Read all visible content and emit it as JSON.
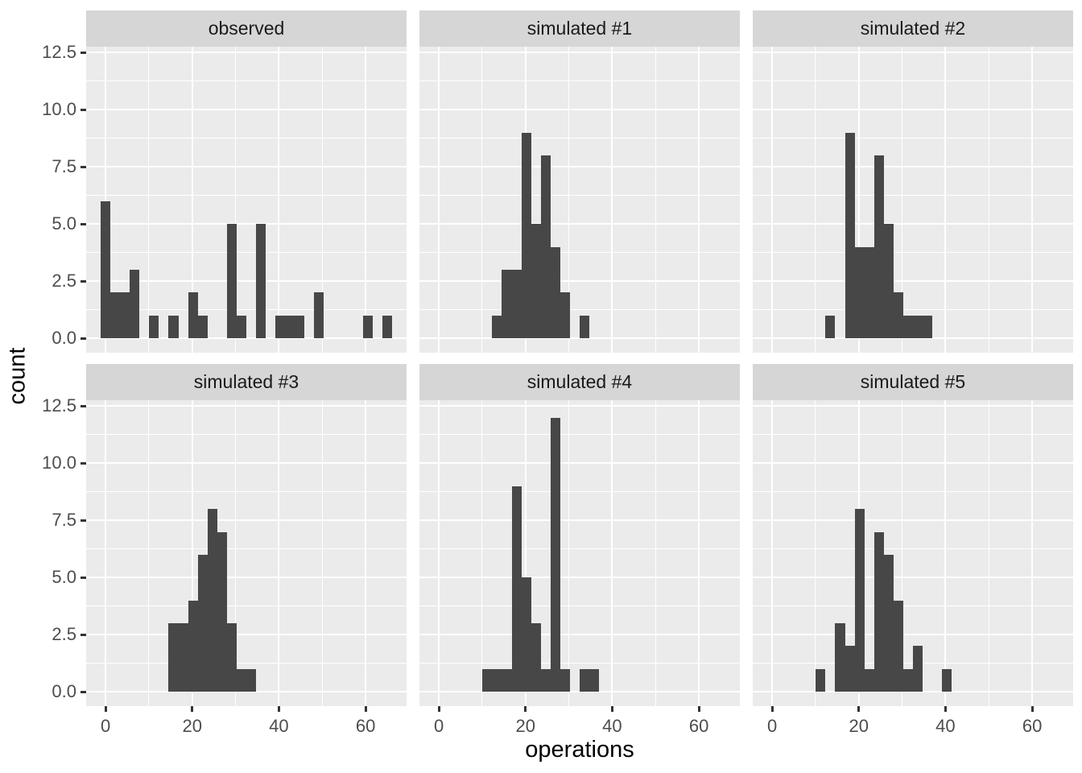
{
  "figure": {
    "x_axis_title": "operations",
    "y_axis_title": "count"
  },
  "chart_data": {
    "type": "bar",
    "subtype": "faceted-histogram",
    "title": "",
    "xlabel": "operations",
    "ylabel": "count",
    "facet_layout": {
      "rows": 2,
      "cols": 3
    },
    "binwidth": 2.24,
    "xlim": [
      -4.48,
      69.46
    ],
    "ylim": [
      -0.63,
      12.76
    ],
    "x_ticks": [
      0,
      20,
      40,
      60
    ],
    "x_tick_labels": [
      "0",
      "20",
      "40",
      "60"
    ],
    "y_ticks": [
      0,
      2.5,
      5,
      7.5,
      10,
      12.5
    ],
    "y_tick_labels": [
      "0.0",
      "2.5",
      "5.0",
      "7.5",
      "10.0",
      "12.5"
    ],
    "x_minor_gridlines": [
      10,
      30,
      50
    ],
    "y_minor_gridlines": [
      1.25,
      3.75,
      6.25,
      8.75,
      11.25
    ],
    "grid": true,
    "legend": "none",
    "facets": [
      {
        "label": "observed",
        "bins": [
          [
            0,
            6
          ],
          [
            2.24,
            2
          ],
          [
            4.48,
            2
          ],
          [
            6.72,
            3
          ],
          [
            11.2,
            1
          ],
          [
            15.68,
            1
          ],
          [
            20.16,
            2
          ],
          [
            22.4,
            1
          ],
          [
            29.12,
            5
          ],
          [
            31.36,
            1
          ],
          [
            35.84,
            5
          ],
          [
            40.32,
            1
          ],
          [
            42.56,
            1
          ],
          [
            44.8,
            1
          ],
          [
            49.28,
            2
          ],
          [
            60.48,
            1
          ],
          [
            64.96,
            1
          ]
        ]
      },
      {
        "label": "simulated #1",
        "bins": [
          [
            13.44,
            1
          ],
          [
            15.68,
            3
          ],
          [
            17.92,
            3
          ],
          [
            20.16,
            9
          ],
          [
            22.4,
            5
          ],
          [
            24.64,
            8
          ],
          [
            26.88,
            4
          ],
          [
            29.12,
            2
          ],
          [
            33.6,
            1
          ]
        ]
      },
      {
        "label": "simulated #2",
        "bins": [
          [
            13.44,
            1
          ],
          [
            17.92,
            9
          ],
          [
            20.16,
            4
          ],
          [
            22.4,
            4
          ],
          [
            24.64,
            8
          ],
          [
            26.88,
            5
          ],
          [
            29.12,
            2
          ],
          [
            31.36,
            1
          ],
          [
            33.6,
            1
          ],
          [
            35.84,
            1
          ]
        ]
      },
      {
        "label": "simulated #3",
        "bins": [
          [
            15.68,
            3
          ],
          [
            17.92,
            3
          ],
          [
            20.16,
            4
          ],
          [
            22.4,
            6
          ],
          [
            24.64,
            8
          ],
          [
            26.88,
            7
          ],
          [
            29.12,
            3
          ],
          [
            31.36,
            1
          ],
          [
            33.6,
            1
          ]
        ]
      },
      {
        "label": "simulated #4",
        "bins": [
          [
            11.2,
            1
          ],
          [
            13.44,
            1
          ],
          [
            15.68,
            1
          ],
          [
            17.92,
            9
          ],
          [
            20.16,
            5
          ],
          [
            22.4,
            3
          ],
          [
            24.64,
            1
          ],
          [
            26.88,
            12
          ],
          [
            29.12,
            1
          ],
          [
            33.6,
            1
          ],
          [
            35.84,
            1
          ]
        ]
      },
      {
        "label": "simulated #5",
        "bins": [
          [
            11.2,
            1
          ],
          [
            15.68,
            3
          ],
          [
            17.92,
            2
          ],
          [
            20.16,
            8
          ],
          [
            22.4,
            1
          ],
          [
            24.64,
            7
          ],
          [
            26.88,
            6
          ],
          [
            29.12,
            4
          ],
          [
            31.36,
            1
          ],
          [
            33.6,
            2
          ],
          [
            40.32,
            1
          ]
        ]
      }
    ]
  },
  "colors": {
    "bar": "#474747",
    "panel_background": "#ebebeb",
    "strip_background": "#d6d6d6",
    "gridline": "#ffffff",
    "tick_mark": "#333333",
    "tick_label": "#4d4d4d",
    "strip_text": "#1a1a1a",
    "axis_title": "#000000",
    "page_background": "#ffffff"
  }
}
